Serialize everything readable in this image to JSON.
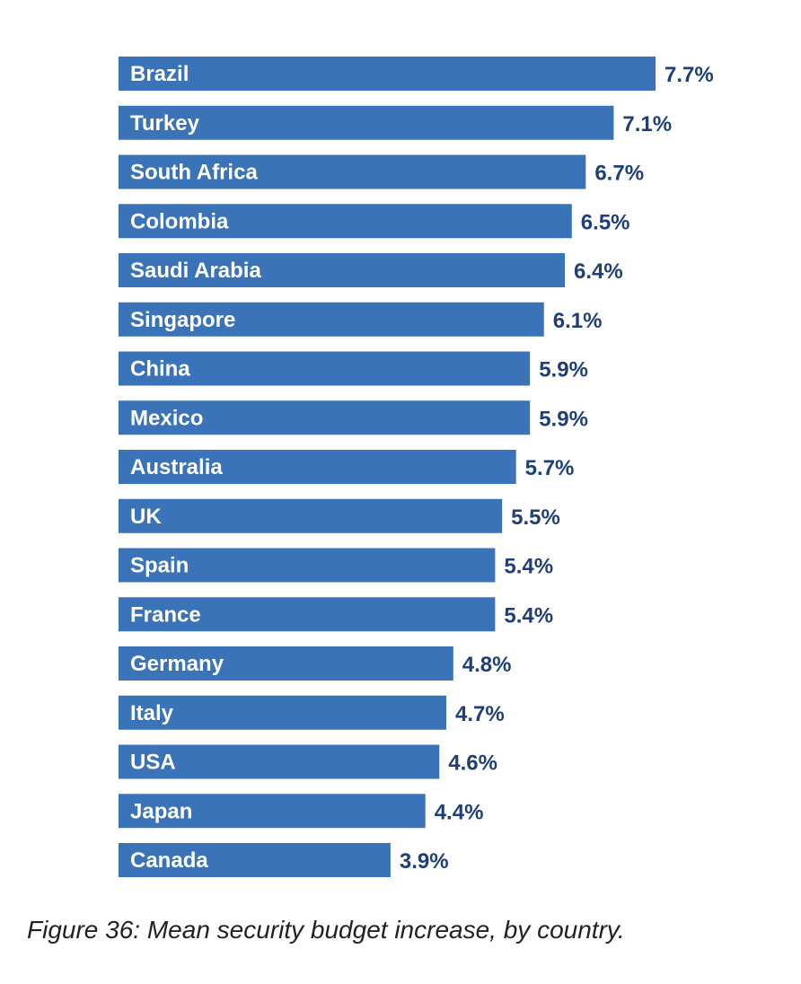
{
  "caption": "Figure 36: Mean security budget increase, by country.",
  "colors": {
    "bar": "#3a73b8",
    "value_text": "#1f3f7a",
    "bar_text": "#ffffff"
  },
  "chart_data": {
    "type": "bar",
    "orientation": "horizontal",
    "categories": [
      "Brazil",
      "Turkey",
      "South Africa",
      "Colombia",
      "Saudi Arabia",
      "Singapore",
      "China",
      "Mexico",
      "Australia",
      "UK",
      "Spain",
      "France",
      "Germany",
      "Italy",
      "USA",
      "Japan",
      "Canada"
    ],
    "values": [
      7.7,
      7.1,
      6.7,
      6.5,
      6.4,
      6.1,
      5.9,
      5.9,
      5.7,
      5.5,
      5.4,
      5.4,
      4.8,
      4.7,
      4.6,
      4.4,
      3.9
    ],
    "value_labels": [
      "7.7%",
      "7.1%",
      "6.7%",
      "6.5%",
      "6.4%",
      "6.1%",
      "5.9%",
      "5.9%",
      "5.7%",
      "5.5%",
      "5.4%",
      "5.4%",
      "4.8%",
      "4.7%",
      "4.6%",
      "4.4%",
      "3.9%"
    ],
    "unit": "%",
    "xlim": [
      0,
      7.7
    ],
    "grid": false,
    "legend": "none"
  }
}
